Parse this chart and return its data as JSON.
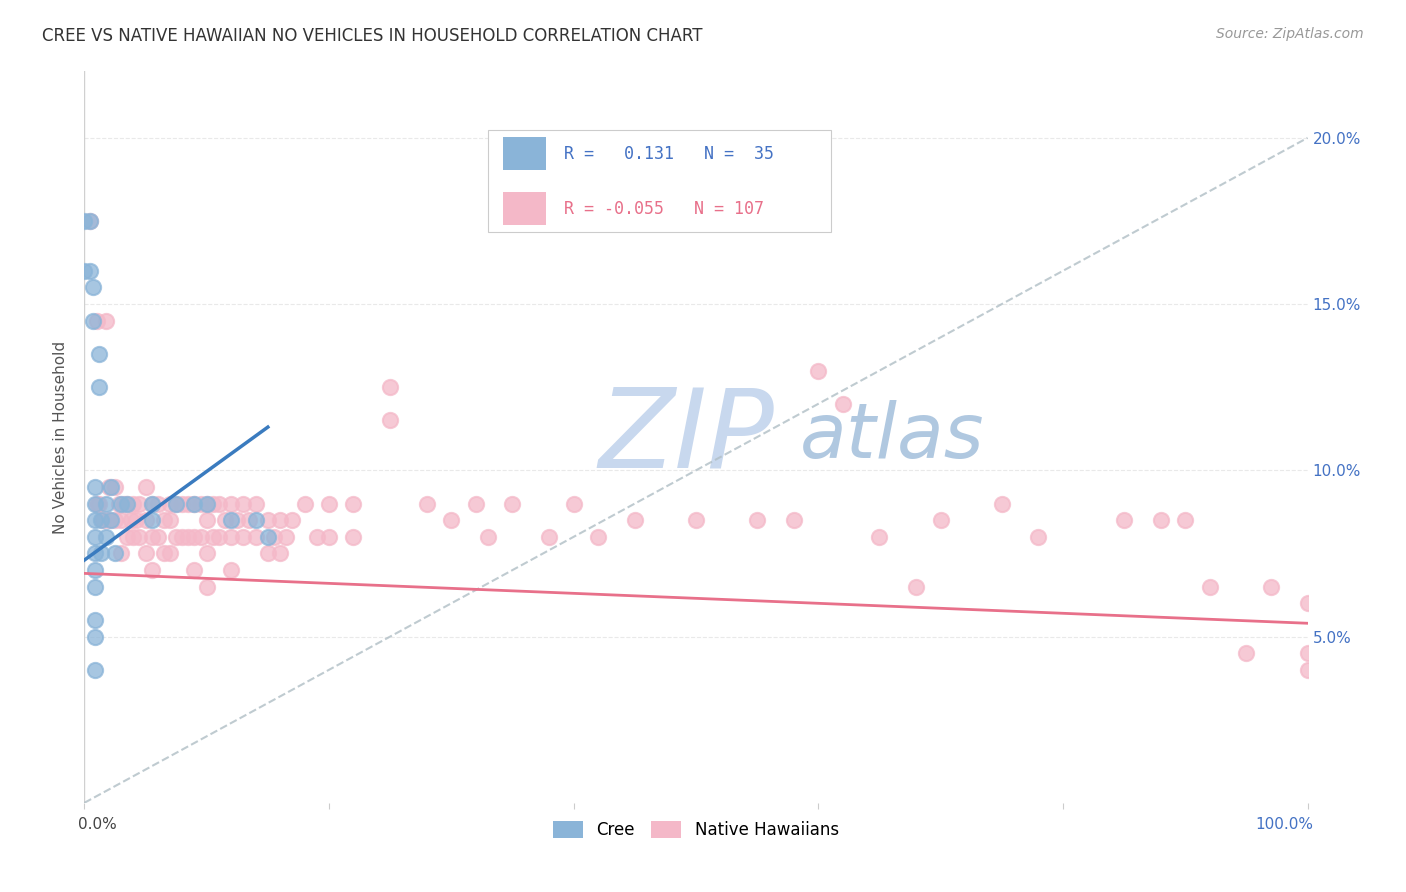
{
  "title": "CREE VS NATIVE HAWAIIAN NO VEHICLES IN HOUSEHOLD CORRELATION CHART",
  "source": "Source: ZipAtlas.com",
  "ylabel": "No Vehicles in Household",
  "ytick_labels": [
    "5.0%",
    "10.0%",
    "15.0%",
    "20.0%"
  ],
  "ytick_values": [
    0.05,
    0.1,
    0.15,
    0.2
  ],
  "xlim": [
    0.0,
    1.0
  ],
  "ylim": [
    0.0,
    0.22
  ],
  "legend_r_cree": " 0.131",
  "legend_n_cree": " 35",
  "legend_r_nh": "-0.055",
  "legend_n_nh": "107",
  "cree_color": "#8ab4d8",
  "nh_color": "#f4b8c8",
  "trendline_cree_color": "#3a7bbf",
  "trendline_nh_color": "#e8708a",
  "dashed_line_color": "#b0bec5",
  "watermark_zip": "ZIP",
  "watermark_atlas": "atlas",
  "watermark_color_zip": "#c5d8ee",
  "watermark_color_atlas": "#b8cfe8",
  "cree_scatter_x": [
    0.0,
    0.0,
    0.005,
    0.005,
    0.007,
    0.007,
    0.009,
    0.009,
    0.009,
    0.009,
    0.009,
    0.009,
    0.009,
    0.009,
    0.009,
    0.009,
    0.012,
    0.012,
    0.014,
    0.014,
    0.018,
    0.018,
    0.022,
    0.022,
    0.025,
    0.03,
    0.035,
    0.055,
    0.055,
    0.075,
    0.09,
    0.1,
    0.12,
    0.14,
    0.15
  ],
  "cree_scatter_y": [
    0.175,
    0.16,
    0.175,
    0.16,
    0.155,
    0.145,
    0.095,
    0.09,
    0.085,
    0.08,
    0.075,
    0.07,
    0.065,
    0.055,
    0.05,
    0.04,
    0.135,
    0.125,
    0.085,
    0.075,
    0.09,
    0.08,
    0.095,
    0.085,
    0.075,
    0.09,
    0.09,
    0.09,
    0.085,
    0.09,
    0.09,
    0.09,
    0.085,
    0.085,
    0.08
  ],
  "nh_scatter_x": [
    0.005,
    0.01,
    0.01,
    0.012,
    0.015,
    0.018,
    0.02,
    0.02,
    0.025,
    0.025,
    0.028,
    0.03,
    0.03,
    0.032,
    0.035,
    0.035,
    0.038,
    0.04,
    0.04,
    0.042,
    0.045,
    0.045,
    0.05,
    0.05,
    0.05,
    0.055,
    0.055,
    0.055,
    0.06,
    0.06,
    0.065,
    0.065,
    0.07,
    0.07,
    0.07,
    0.075,
    0.075,
    0.08,
    0.08,
    0.085,
    0.085,
    0.09,
    0.09,
    0.09,
    0.095,
    0.095,
    0.1,
    0.1,
    0.1,
    0.1,
    0.105,
    0.105,
    0.11,
    0.11,
    0.115,
    0.12,
    0.12,
    0.12,
    0.125,
    0.13,
    0.13,
    0.135,
    0.14,
    0.14,
    0.15,
    0.15,
    0.155,
    0.16,
    0.16,
    0.165,
    0.17,
    0.18,
    0.19,
    0.2,
    0.2,
    0.22,
    0.22,
    0.25,
    0.25,
    0.28,
    0.3,
    0.32,
    0.33,
    0.35,
    0.38,
    0.4,
    0.42,
    0.45,
    0.5,
    0.55,
    0.58,
    0.6,
    0.62,
    0.65,
    0.68,
    0.7,
    0.75,
    0.78,
    0.85,
    0.88,
    0.9,
    0.92,
    0.95,
    0.97,
    1.0,
    1.0,
    1.0
  ],
  "nh_scatter_y": [
    0.175,
    0.145,
    0.09,
    0.09,
    0.085,
    0.145,
    0.095,
    0.085,
    0.095,
    0.085,
    0.09,
    0.085,
    0.075,
    0.09,
    0.09,
    0.08,
    0.085,
    0.09,
    0.08,
    0.085,
    0.09,
    0.08,
    0.095,
    0.085,
    0.075,
    0.09,
    0.08,
    0.07,
    0.09,
    0.08,
    0.085,
    0.075,
    0.09,
    0.085,
    0.075,
    0.09,
    0.08,
    0.09,
    0.08,
    0.09,
    0.08,
    0.09,
    0.08,
    0.07,
    0.09,
    0.08,
    0.09,
    0.085,
    0.075,
    0.065,
    0.09,
    0.08,
    0.09,
    0.08,
    0.085,
    0.09,
    0.08,
    0.07,
    0.085,
    0.09,
    0.08,
    0.085,
    0.09,
    0.08,
    0.085,
    0.075,
    0.08,
    0.085,
    0.075,
    0.08,
    0.085,
    0.09,
    0.08,
    0.09,
    0.08,
    0.09,
    0.08,
    0.125,
    0.115,
    0.09,
    0.085,
    0.09,
    0.08,
    0.09,
    0.08,
    0.09,
    0.08,
    0.085,
    0.085,
    0.085,
    0.085,
    0.13,
    0.12,
    0.08,
    0.065,
    0.085,
    0.09,
    0.08,
    0.085,
    0.085,
    0.085,
    0.065,
    0.045,
    0.065,
    0.045,
    0.06,
    0.04
  ],
  "cree_trendline": [
    [
      0.0,
      0.073
    ],
    [
      0.15,
      0.113
    ]
  ],
  "nh_trendline": [
    [
      0.0,
      0.069
    ],
    [
      1.0,
      0.054
    ]
  ],
  "dashed_trendline": [
    [
      0.0,
      0.0
    ],
    [
      1.0,
      0.2
    ]
  ],
  "background_color": "#ffffff",
  "plot_bg_color": "#ffffff",
  "grid_color": "#e0e0e0",
  "border_color": "#d0d0d0"
}
